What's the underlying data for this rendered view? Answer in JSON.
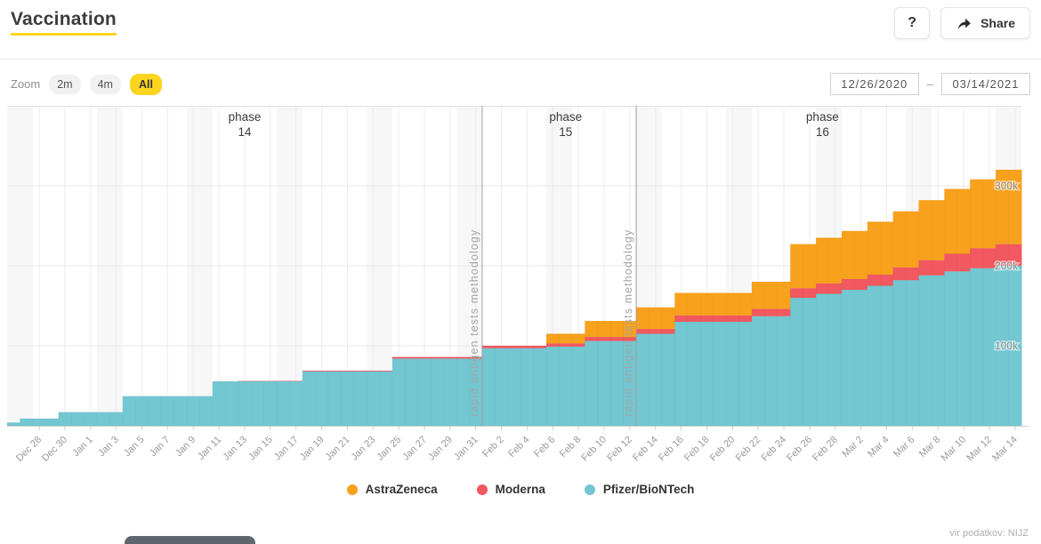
{
  "header": {
    "title": "Vaccination",
    "help_label": "?",
    "share_label": "Share"
  },
  "toolbar": {
    "zoom_label": "Zoom",
    "zoom_options": [
      {
        "label": "2m",
        "active": false
      },
      {
        "label": "4m",
        "active": false
      },
      {
        "label": "All",
        "active": true
      }
    ],
    "date_from": "12/26/2020",
    "date_separator": "–",
    "date_to": "03/14/2021"
  },
  "legend": {
    "items": [
      {
        "label": "AstraZeneca",
        "color": "#f8a11c"
      },
      {
        "label": "Moderna",
        "color": "#f1585f"
      },
      {
        "label": "Pfizer/BioNTech",
        "color": "#72c7d1"
      }
    ]
  },
  "footer": {
    "source": "vir podatkov: NIJZ"
  },
  "colors": {
    "accent_yellow": "#ffd41f",
    "grid": "#e9e9e9",
    "axis_label": "#999999",
    "phase_text": "#3c3c3c",
    "annotation": "#a5a5a5",
    "tooltip_gray": "#5f666d"
  },
  "chart_data": {
    "type": "area",
    "stacked": true,
    "step": true,
    "title": "Vaccination",
    "start_date": "12/26/2020",
    "end_date": "03/14/2021",
    "days": 79,
    "ylim": [
      0,
      400000
    ],
    "grid": true,
    "legend_position": "bottom",
    "y_ticks": [
      {
        "label": "100k",
        "value": 100000
      },
      {
        "label": "200k",
        "value": 200000
      },
      {
        "label": "300k",
        "value": 300000
      }
    ],
    "x_tick_labels": [
      "Dec 28",
      "Dec 30",
      "Jan 1",
      "Jan 3",
      "Jan 5",
      "Jan 7",
      "Jan 9",
      "Jan 11",
      "Jan 13",
      "Jan 15",
      "Jan 17",
      "Jan 19",
      "Jan 21",
      "Jan 23",
      "Jan 25",
      "Jan 27",
      "Jan 29",
      "Jan 31",
      "Feb 2",
      "Feb 4",
      "Feb 6",
      "Feb 8",
      "Feb 10",
      "Feb 12",
      "Feb 14",
      "Feb 16",
      "Feb 18",
      "Feb 20",
      "Feb 22",
      "Feb 24",
      "Feb 26",
      "Feb 28",
      "Mar 2",
      "Mar 4",
      "Mar 6",
      "Mar 8",
      "Mar 10",
      "Mar 12",
      "Mar 14"
    ],
    "x_tick_first_day_index": 2,
    "x_tick_day_step": 2,
    "series": [
      {
        "name": "Pfizer/BioNTech",
        "color": "#72c7d1",
        "values": [
          4000,
          9000,
          9000,
          9000,
          17000,
          17000,
          17000,
          17000,
          17000,
          37000,
          37000,
          37000,
          37000,
          37000,
          37000,
          37000,
          55500,
          55500,
          55500,
          55500,
          55500,
          55500,
          55500,
          68000,
          68000,
          68000,
          68000,
          68000,
          68000,
          68000,
          84000,
          84000,
          84000,
          84000,
          84000,
          84000,
          84000,
          97000,
          97000,
          97000,
          97000,
          97000,
          99000,
          99000,
          99000,
          106000,
          106000,
          106000,
          106000,
          115000,
          115000,
          115000,
          130000,
          130000,
          130000,
          130000,
          130000,
          130000,
          137000,
          137000,
          137000,
          160000,
          160000,
          165000,
          165000,
          170000,
          170000,
          175000,
          175000,
          182000,
          182000,
          188000,
          188000,
          193000,
          193000,
          197000,
          197000,
          200000,
          200000
        ]
      },
      {
        "name": "Moderna",
        "color": "#f1585f",
        "values": [
          0,
          0,
          0,
          0,
          0,
          0,
          0,
          0,
          0,
          0,
          0,
          0,
          0,
          0,
          0,
          0,
          0,
          0,
          500,
          500,
          500,
          500,
          500,
          900,
          900,
          900,
          900,
          900,
          900,
          900,
          2000,
          2000,
          2000,
          2000,
          2000,
          2000,
          2000,
          3000,
          3000,
          3000,
          3000,
          3000,
          4000,
          4000,
          4000,
          5000,
          5000,
          5000,
          5000,
          6000,
          6000,
          6000,
          8000,
          8000,
          8000,
          8000,
          8000,
          8000,
          9000,
          9000,
          9000,
          12000,
          12000,
          13000,
          13000,
          13500,
          13500,
          14000,
          14000,
          16000,
          16000,
          19000,
          19000,
          22000,
          22000,
          25000,
          25000,
          27000,
          27000
        ]
      },
      {
        "name": "AstraZeneca",
        "color": "#f8a11c",
        "values": [
          0,
          0,
          0,
          0,
          0,
          0,
          0,
          0,
          0,
          0,
          0,
          0,
          0,
          0,
          0,
          0,
          0,
          0,
          0,
          0,
          0,
          0,
          0,
          0,
          0,
          0,
          0,
          0,
          0,
          0,
          0,
          0,
          0,
          0,
          0,
          0,
          0,
          0,
          0,
          0,
          0,
          0,
          12000,
          12000,
          12000,
          20000,
          20000,
          20000,
          20000,
          27000,
          27000,
          27000,
          28000,
          28000,
          28000,
          28000,
          28000,
          28000,
          34000,
          34000,
          34000,
          55000,
          55000,
          57000,
          57000,
          60000,
          60000,
          66000,
          66000,
          70000,
          70000,
          75000,
          75000,
          81000,
          81000,
          86000,
          86000,
          93000,
          93000
        ]
      }
    ],
    "annotations": {
      "phases": [
        {
          "line1": "phase",
          "line2": "14",
          "center_day_index": 18
        },
        {
          "line1": "phase",
          "line2": "15",
          "center_day_index": 43
        },
        {
          "line1": "phase",
          "line2": "16",
          "center_day_index": 63
        }
      ],
      "vlines": [
        {
          "day_index": 37,
          "text": "rapid antigen tests methodology"
        },
        {
          "day_index": 49,
          "text": "rapid antigen tests methodology"
        }
      ]
    },
    "weekend_band_start_indices": [
      0,
      7,
      14,
      21,
      28,
      35,
      42,
      49,
      56,
      63,
      70,
      77
    ],
    "weekend_band_width_days": 2
  }
}
